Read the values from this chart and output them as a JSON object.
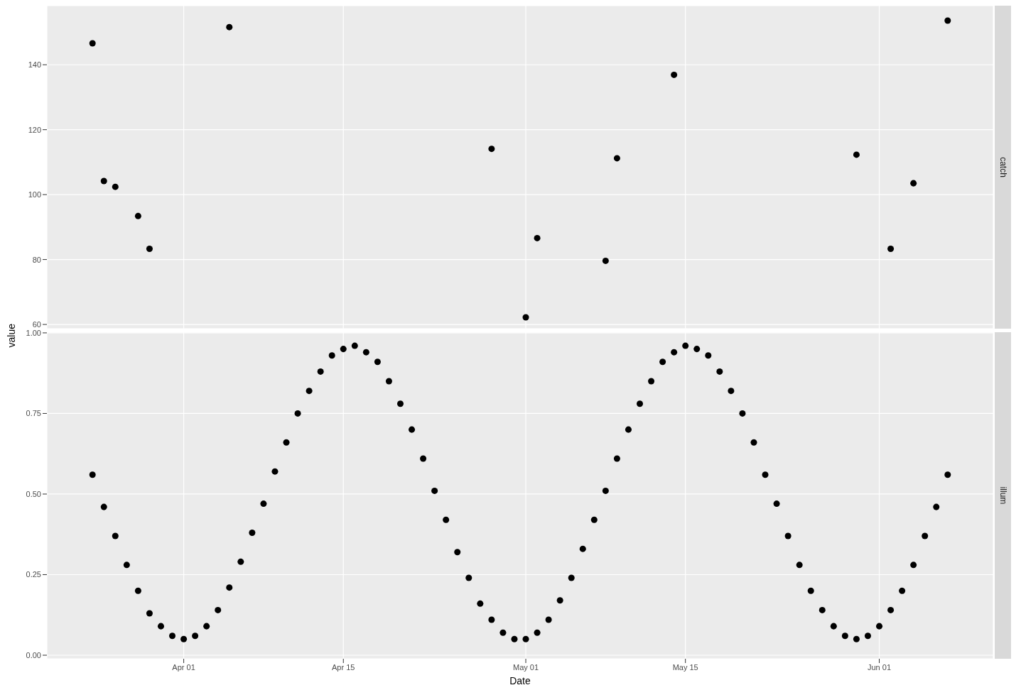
{
  "chart_data": [
    {
      "type": "scatter",
      "annotations": [
        "catch"
      ],
      "ylabel": "value",
      "x": [
        "--03-24",
        "--03-25",
        "--03-26",
        "--03-28",
        "--03-29",
        "--04-05",
        "--04-28",
        "--05-01",
        "--05-02",
        "--05-08",
        "--05-09",
        "--05-14",
        "--05-30",
        "--06-02",
        "--06-04",
        "--06-07"
      ],
      "series": [
        {
          "color": "#000000",
          "values": [
            146.6,
            104.2,
            102.4,
            93.4,
            83.3,
            151.6,
            114.1,
            62.2,
            86.6,
            79.6,
            111.2,
            136.9,
            112.3,
            83.3,
            103.5,
            153.6
          ]
        }
      ],
      "xlim": [
        "--03-20",
        "--06-11"
      ],
      "xticks": [
        {
          "value": "--04-01",
          "label": null
        },
        {
          "value": "--04-15",
          "label": null
        },
        {
          "value": "--05-01",
          "label": null
        },
        {
          "value": "--05-15",
          "label": null
        },
        {
          "value": "--06-01",
          "label": null
        }
      ],
      "ylim": [
        58.7,
        158.2
      ],
      "yticks": [
        60,
        80,
        100,
        120,
        140
      ],
      "tick_labels": "y",
      "grid": true,
      "marker": "circle"
    },
    {
      "type": "scatter",
      "annotations": [
        "illum"
      ],
      "xlabel": "Date",
      "x": [
        "--03-24",
        "--03-25",
        "--03-26",
        "--03-27",
        "--03-28",
        "--03-29",
        "--03-30",
        "--03-31",
        "--04-01",
        "--04-02",
        "--04-03",
        "--04-04",
        "--04-05",
        "--04-06",
        "--04-07",
        "--04-08",
        "--04-09",
        "--04-10",
        "--04-11",
        "--04-12",
        "--04-13",
        "--04-14",
        "--04-15",
        "--04-16",
        "--04-17",
        "--04-18",
        "--04-19",
        "--04-20",
        "--04-21",
        "--04-22",
        "--04-23",
        "--04-24",
        "--04-25",
        "--04-26",
        "--04-27",
        "--04-28",
        "--04-29",
        "--04-30",
        "--05-01",
        "--05-02",
        "--05-03",
        "--05-04",
        "--05-05",
        "--05-06",
        "--05-07",
        "--05-08",
        "--05-09",
        "--05-10",
        "--05-11",
        "--05-12",
        "--05-13",
        "--05-14",
        "--05-15",
        "--05-16",
        "--05-17",
        "--05-18",
        "--05-19",
        "--05-20",
        "--05-21",
        "--05-22",
        "--05-23",
        "--05-24",
        "--05-25",
        "--05-26",
        "--05-27",
        "--05-28",
        "--05-29",
        "--05-30",
        "--05-31",
        "--06-01",
        "--06-02",
        "--06-03",
        "--06-04",
        "--06-05",
        "--06-06",
        "--06-07"
      ],
      "series": [
        {
          "color": "#000000",
          "values": [
            0.56,
            0.46,
            0.37,
            0.28,
            0.2,
            0.13,
            0.09,
            0.06,
            0.05,
            0.06,
            0.09,
            0.14,
            0.21,
            0.29,
            0.38,
            0.47,
            0.57,
            0.66,
            0.75,
            0.82,
            0.88,
            0.93,
            0.95,
            0.96,
            0.94,
            0.91,
            0.85,
            0.78,
            0.7,
            0.61,
            0.51,
            0.42,
            0.32,
            0.24,
            0.16,
            0.11,
            0.07,
            0.05,
            0.05,
            0.07,
            0.11,
            0.17,
            0.24,
            0.33,
            0.42,
            0.51,
            0.61,
            0.7,
            0.78,
            0.85,
            0.91,
            0.94,
            0.96,
            0.95,
            0.93,
            0.88,
            0.82,
            0.75,
            0.66,
            0.56,
            0.47,
            0.37,
            0.28,
            0.2,
            0.14,
            0.09,
            0.06,
            0.05,
            0.06,
            0.09,
            0.14,
            0.2,
            0.28,
            0.37,
            0.46,
            0.56
          ]
        }
      ],
      "xlim": [
        "--03-20",
        "--06-11"
      ],
      "xticks": [
        {
          "value": "--04-01",
          "label": "Apr 01"
        },
        {
          "value": "--04-15",
          "label": "Apr 15"
        },
        {
          "value": "--05-01",
          "label": "May 01"
        },
        {
          "value": "--05-15",
          "label": "May 15"
        },
        {
          "value": "--06-01",
          "label": "Jun 01"
        }
      ],
      "ylim": [
        -0.011,
        1.002
      ],
      "yticks": [
        {
          "value": 0,
          "label": "0.00"
        },
        {
          "value": 0.25,
          "label": "0.25"
        },
        {
          "value": 0.5,
          "label": "0.50"
        },
        {
          "value": 0.75,
          "label": "0.75"
        },
        {
          "value": 1,
          "label": "1.00"
        }
      ],
      "grid": true,
      "marker": "circle"
    }
  ]
}
